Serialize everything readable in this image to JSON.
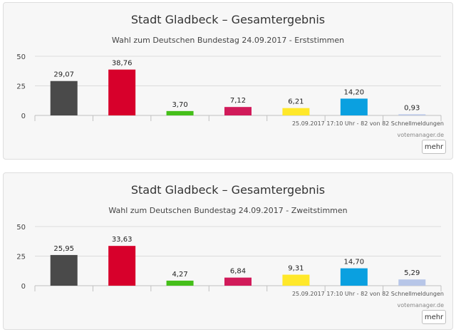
{
  "panels": [
    {
      "title": "Stadt Gladbeck – Gesamtergebnis",
      "subtitle": "Wahl zum Deutschen Bundestag 24.09.2017 - Erststimmen",
      "status": "25.09.2017 17:10 Uhr - 82 von 82 Schnellmeldungen",
      "credits": "votemanager.de",
      "more_label": "mehr"
    },
    {
      "title": "Stadt Gladbeck – Gesamtergebnis",
      "subtitle": "Wahl zum Deutschen Bundestag 24.09.2017 - Zweitstimmen",
      "status": "25.09.2017 17:10 Uhr - 82 von 82 Schnellmeldungen",
      "credits": "votemanager.de",
      "more_label": "mehr"
    }
  ],
  "chart_data": [
    {
      "type": "bar",
      "title": "Stadt Gladbeck – Gesamtergebnis",
      "subtitle": "Wahl zum Deutschen Bundestag 24.09.2017 - Erststimmen",
      "xlabel": "",
      "ylabel": "",
      "ylim": [
        0,
        50
      ],
      "yticks": [
        0,
        25,
        50
      ],
      "grid": true,
      "values": [
        29.07,
        38.76,
        3.7,
        7.12,
        6.21,
        14.2,
        0.93
      ],
      "labels": [
        "29,07",
        "38,76",
        "3,70",
        "7,12",
        "6,21",
        "14,20",
        "0,93"
      ],
      "colors": [
        "#4a4a4a",
        "#d7002b",
        "#45bf1a",
        "#d11b5a",
        "#ffe82a",
        "#0aa0e0",
        "#b7c6e8"
      ]
    },
    {
      "type": "bar",
      "title": "Stadt Gladbeck – Gesamtergebnis",
      "subtitle": "Wahl zum Deutschen Bundestag 24.09.2017 - Zweitstimmen",
      "xlabel": "",
      "ylabel": "",
      "ylim": [
        0,
        50
      ],
      "yticks": [
        0,
        25,
        50
      ],
      "grid": true,
      "values": [
        25.95,
        33.63,
        4.27,
        6.84,
        9.31,
        14.7,
        5.29
      ],
      "labels": [
        "25,95",
        "33,63",
        "4,27",
        "6,84",
        "9,31",
        "14,70",
        "5,29"
      ],
      "colors": [
        "#4a4a4a",
        "#d7002b",
        "#45bf1a",
        "#d11b5a",
        "#ffe82a",
        "#0aa0e0",
        "#b7c6e8"
      ]
    }
  ]
}
